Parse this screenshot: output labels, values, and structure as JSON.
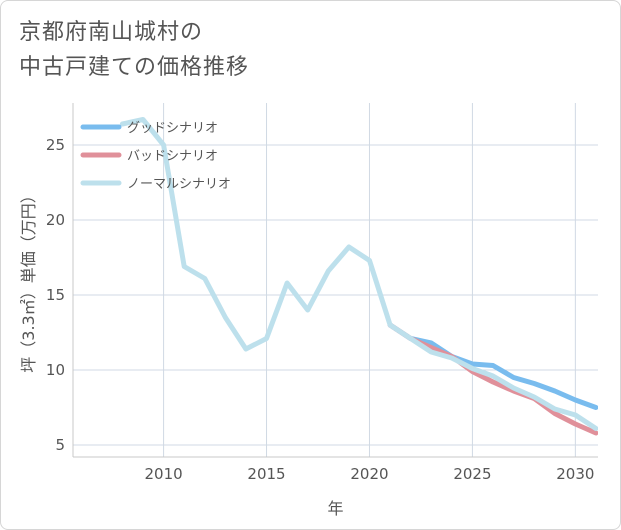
{
  "title_lines": [
    "京都府南山城村の",
    "中古戸建ての価格推移"
  ],
  "chart_data": {
    "type": "line",
    "xlabel": "年",
    "ylabel": "坪（3.3㎡）単価（万円）",
    "xlim": [
      2005.6,
      2031.1
    ],
    "ylim": [
      4.2,
      27.8
    ],
    "xticks": [
      2010,
      2015,
      2020,
      2025,
      2030
    ],
    "yticks": [
      5,
      10,
      15,
      20,
      25
    ],
    "grid": true,
    "legend_position": "top-left",
    "series": [
      {
        "name": "グッドシナリオ",
        "color": "#79bcee",
        "x": [
          2021,
          2022,
          2023,
          2024,
          2025,
          2026,
          2027,
          2028,
          2029,
          2030,
          2031
        ],
        "values": [
          13.0,
          12.1,
          11.8,
          10.9,
          10.4,
          10.3,
          9.5,
          9.1,
          8.6,
          8.0,
          7.5
        ]
      },
      {
        "name": "バッドシナリオ",
        "color": "#e0909a",
        "x": [
          2021,
          2022,
          2023,
          2024,
          2025,
          2026,
          2027,
          2028,
          2029,
          2030,
          2031
        ],
        "values": [
          13.0,
          12.1,
          11.5,
          10.9,
          9.9,
          9.2,
          8.6,
          8.1,
          7.1,
          6.4,
          5.8
        ]
      },
      {
        "name": "ノーマルシナリオ",
        "color": "#bde0ec",
        "x": [
          2008,
          2009,
          2010,
          2011,
          2012,
          2013,
          2014,
          2015,
          2016,
          2017,
          2018,
          2019,
          2020,
          2021,
          2022,
          2023,
          2024,
          2025,
          2026,
          2027,
          2028,
          2029,
          2030,
          2031
        ],
        "values": [
          26.4,
          26.7,
          25.0,
          16.9,
          16.1,
          13.5,
          11.4,
          12.1,
          15.8,
          14.0,
          16.6,
          18.2,
          17.3,
          13.0,
          12.1,
          11.2,
          10.8,
          10.1,
          9.6,
          8.8,
          8.2,
          7.4,
          7.0,
          6.1
        ]
      }
    ]
  }
}
